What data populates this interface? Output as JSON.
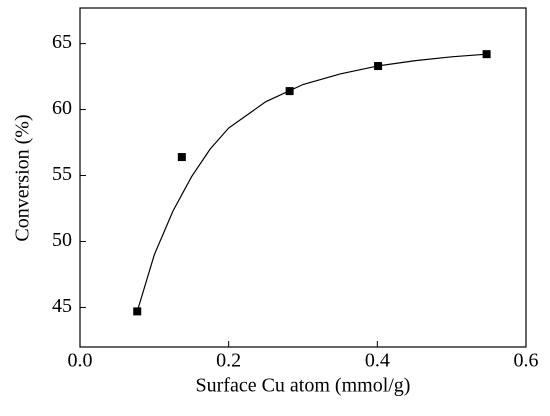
{
  "chart_data": {
    "type": "scatter",
    "x_label": "Surface Cu atom (mmol/g)",
    "y_label": "Conversion (%)",
    "series": [
      {
        "color": "#000000",
        "x": [
          0.077,
          0.137,
          0.282,
          0.401,
          0.547
        ],
        "values": [
          44.7,
          56.4,
          61.4,
          63.3,
          64.2
        ]
      }
    ],
    "fit": {
      "color": "#000000",
      "x": [
        0.077,
        0.1,
        0.125,
        0.15,
        0.175,
        0.2,
        0.25,
        0.3,
        0.35,
        0.4,
        0.45,
        0.5,
        0.547
      ],
      "values": [
        44.7,
        49,
        52.3,
        54.9,
        57,
        58.6,
        60.6,
        61.9,
        62.7,
        63.3,
        63.7,
        64,
        64.2
      ]
    },
    "xlim": [
      0,
      0.6
    ],
    "xticks": [
      {
        "value": 0,
        "label": "0.0"
      },
      0.2,
      0.4,
      0.6
    ],
    "ylim": [
      42,
      67.7
    ],
    "yticks": [
      45,
      50,
      55,
      60,
      65
    ]
  }
}
